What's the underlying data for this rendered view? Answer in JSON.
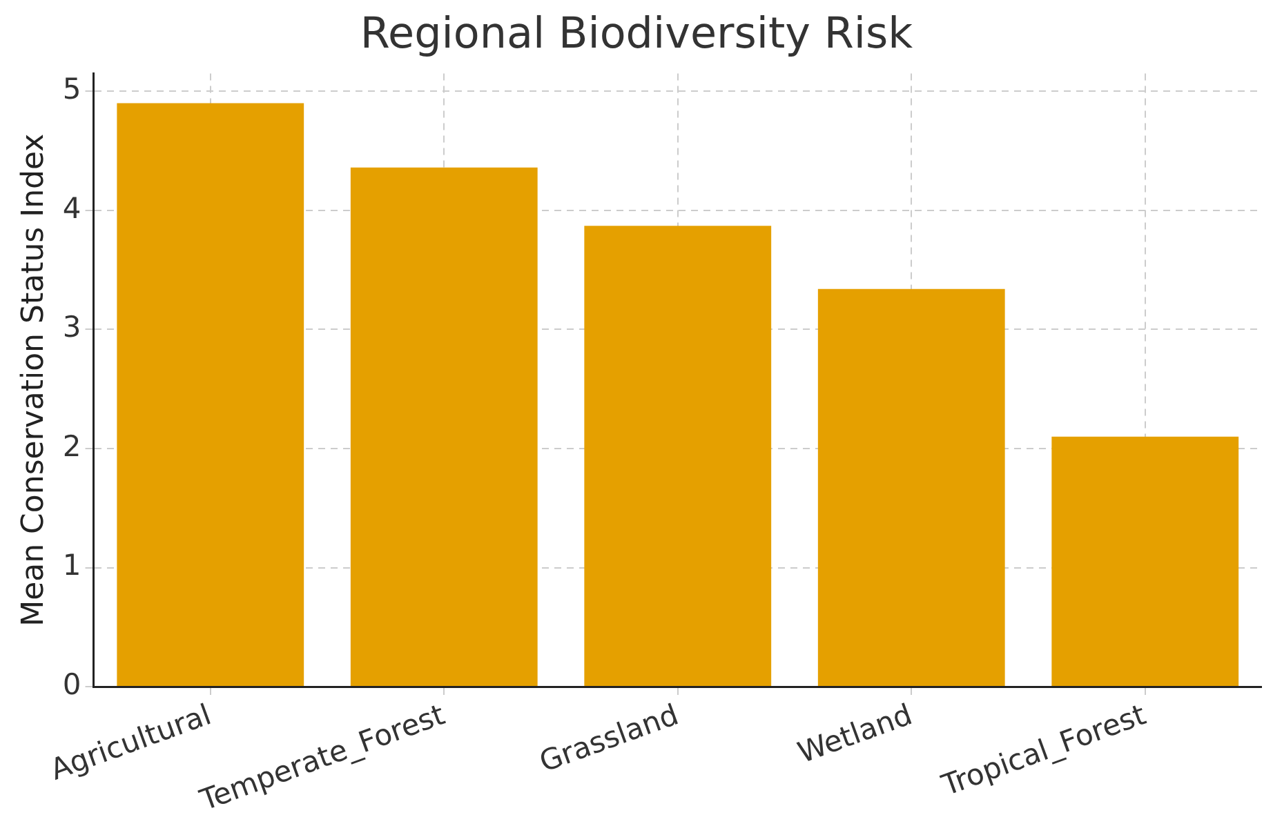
{
  "chart_data": {
    "type": "bar",
    "title": "Regional Biodiversity Risk",
    "ylabel": "Mean Conservation Status Index",
    "categories": [
      "Agricultural",
      "Temperate_Forest",
      "Grassland",
      "Wetland",
      "Tropical_Forest"
    ],
    "values": [
      4.9,
      4.36,
      3.87,
      3.34,
      2.1
    ],
    "color": "#e5a000",
    "ylim": [
      0,
      5.15
    ],
    "yticks": [
      0,
      1,
      2,
      3,
      4,
      5
    ],
    "grid": true,
    "legend": false
  }
}
